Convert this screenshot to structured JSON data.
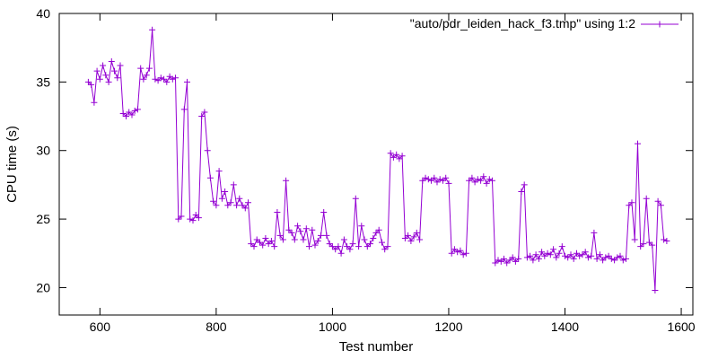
{
  "chart_data": {
    "type": "line",
    "title": "",
    "xlabel": "Test number",
    "ylabel": "CPU time (s)",
    "xlim": [
      530,
      1620
    ],
    "ylim": [
      18,
      40
    ],
    "x_ticks": [
      600,
      800,
      1000,
      1200,
      1400,
      1600
    ],
    "y_ticks": [
      20,
      25,
      30,
      35,
      40
    ],
    "grid": false,
    "legend_position": "top-right",
    "series": [
      {
        "name": "\"auto/pdr_leiden_hack_f3.tmp\" using 1:2",
        "color": "#9400d3",
        "marker": "plus",
        "x": [
          580,
          585,
          590,
          595,
          600,
          605,
          610,
          615,
          620,
          625,
          630,
          635,
          640,
          645,
          650,
          655,
          660,
          665,
          670,
          675,
          680,
          685,
          690,
          695,
          700,
          705,
          710,
          715,
          720,
          725,
          730,
          735,
          740,
          745,
          750,
          755,
          760,
          765,
          770,
          775,
          780,
          785,
          790,
          795,
          800,
          805,
          810,
          815,
          820,
          825,
          830,
          835,
          840,
          845,
          850,
          855,
          860,
          865,
          870,
          875,
          880,
          885,
          890,
          895,
          900,
          905,
          910,
          915,
          920,
          925,
          930,
          935,
          940,
          945,
          950,
          955,
          960,
          965,
          970,
          975,
          980,
          985,
          990,
          995,
          1000,
          1005,
          1010,
          1015,
          1020,
          1025,
          1030,
          1035,
          1040,
          1045,
          1050,
          1055,
          1060,
          1065,
          1070,
          1075,
          1080,
          1085,
          1090,
          1095,
          1100,
          1105,
          1110,
          1115,
          1120,
          1125,
          1130,
          1135,
          1140,
          1145,
          1150,
          1155,
          1160,
          1165,
          1170,
          1175,
          1180,
          1185,
          1190,
          1195,
          1200,
          1205,
          1210,
          1215,
          1220,
          1225,
          1230,
          1235,
          1240,
          1245,
          1250,
          1255,
          1260,
          1265,
          1270,
          1275,
          1280,
          1285,
          1290,
          1295,
          1300,
          1305,
          1310,
          1315,
          1320,
          1325,
          1330,
          1335,
          1340,
          1345,
          1350,
          1355,
          1360,
          1365,
          1370,
          1375,
          1380,
          1385,
          1390,
          1395,
          1400,
          1405,
          1410,
          1415,
          1420,
          1425,
          1430,
          1435,
          1440,
          1445,
          1450,
          1455,
          1460,
          1465,
          1470,
          1475,
          1480,
          1485,
          1490,
          1495,
          1500,
          1505,
          1510,
          1515,
          1520,
          1525,
          1530,
          1535,
          1540,
          1545,
          1550,
          1555,
          1560,
          1565,
          1570,
          1575
        ],
        "y": [
          35.0,
          34.8,
          33.5,
          35.8,
          35.2,
          36.2,
          35.5,
          35.0,
          36.5,
          35.8,
          35.3,
          36.2,
          32.7,
          32.5,
          32.8,
          32.6,
          32.9,
          33.0,
          36.0,
          35.2,
          35.5,
          36.0,
          38.8,
          35.2,
          35.1,
          35.3,
          35.2,
          35.0,
          35.4,
          35.2,
          35.3,
          25.0,
          25.2,
          33.0,
          35.0,
          25.0,
          24.9,
          25.3,
          25.1,
          32.5,
          32.8,
          30.0,
          28.0,
          26.3,
          26.0,
          28.5,
          26.5,
          27.0,
          26.0,
          26.2,
          27.5,
          26.0,
          26.5,
          26.0,
          25.8,
          26.2,
          23.2,
          23.0,
          23.5,
          23.3,
          23.1,
          23.6,
          23.2,
          23.4,
          23.0,
          25.5,
          23.8,
          23.5,
          27.8,
          24.2,
          24.0,
          23.5,
          24.5,
          24.1,
          23.5,
          24.3,
          23.0,
          24.2,
          23.1,
          23.4,
          23.8,
          25.5,
          23.8,
          23.2,
          23.0,
          22.8,
          23.0,
          22.5,
          23.5,
          23.0,
          22.8,
          23.2,
          26.5,
          23.0,
          24.5,
          23.5,
          23.0,
          23.2,
          23.6,
          24.0,
          24.2,
          23.3,
          22.8,
          23.0,
          29.8,
          29.5,
          29.7,
          29.4,
          29.6,
          23.6,
          23.8,
          23.4,
          23.7,
          24.0,
          23.5,
          27.8,
          28.0,
          27.9,
          27.8,
          28.0,
          27.7,
          27.9,
          27.8,
          28.0,
          27.6,
          22.5,
          22.8,
          22.6,
          22.7,
          22.4,
          22.5,
          27.8,
          28.0,
          27.7,
          27.9,
          27.8,
          28.1,
          27.6,
          27.9,
          27.8,
          21.8,
          22.0,
          21.9,
          22.1,
          21.8,
          22.0,
          22.2,
          21.9,
          22.1,
          27.0,
          27.5,
          22.2,
          22.3,
          22.0,
          22.4,
          22.1,
          22.6,
          22.3,
          22.5,
          22.4,
          22.8,
          22.2,
          22.5,
          23.0,
          22.3,
          22.2,
          22.4,
          22.1,
          22.5,
          22.3,
          22.4,
          22.6,
          22.2,
          22.3,
          24.0,
          22.1,
          22.4,
          22.0,
          22.2,
          22.3,
          22.1,
          22.0,
          22.2,
          22.3,
          22.0,
          22.1,
          26.0,
          26.2,
          23.5,
          30.5,
          23.0,
          23.2,
          26.5,
          23.3,
          23.1,
          19.8,
          26.3,
          26.0,
          23.5,
          23.4
        ]
      }
    ]
  }
}
